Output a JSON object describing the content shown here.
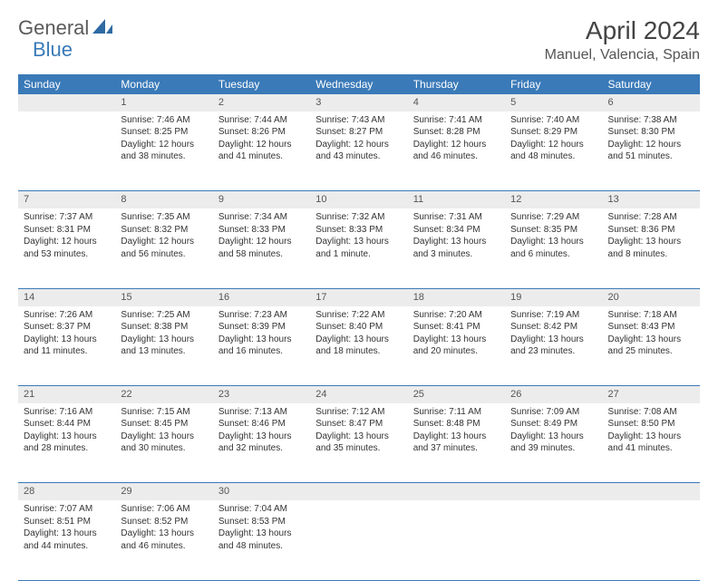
{
  "brand": {
    "part1": "General",
    "part2": "Blue"
  },
  "title": "April 2024",
  "location": "Manuel, Valencia, Spain",
  "colors": {
    "header_bg": "#3a7ab8",
    "header_fg": "#ffffff",
    "daynum_bg": "#ececec",
    "row_border": "#3a7ab8",
    "text": "#333333",
    "brand_gray": "#5a5a5a",
    "brand_blue": "#3a7ab8"
  },
  "weekdays": [
    "Sunday",
    "Monday",
    "Tuesday",
    "Wednesday",
    "Thursday",
    "Friday",
    "Saturday"
  ],
  "weeks": [
    [
      {
        "num": "",
        "lines": []
      },
      {
        "num": "1",
        "lines": [
          "Sunrise: 7:46 AM",
          "Sunset: 8:25 PM",
          "Daylight: 12 hours",
          "and 38 minutes."
        ]
      },
      {
        "num": "2",
        "lines": [
          "Sunrise: 7:44 AM",
          "Sunset: 8:26 PM",
          "Daylight: 12 hours",
          "and 41 minutes."
        ]
      },
      {
        "num": "3",
        "lines": [
          "Sunrise: 7:43 AM",
          "Sunset: 8:27 PM",
          "Daylight: 12 hours",
          "and 43 minutes."
        ]
      },
      {
        "num": "4",
        "lines": [
          "Sunrise: 7:41 AM",
          "Sunset: 8:28 PM",
          "Daylight: 12 hours",
          "and 46 minutes."
        ]
      },
      {
        "num": "5",
        "lines": [
          "Sunrise: 7:40 AM",
          "Sunset: 8:29 PM",
          "Daylight: 12 hours",
          "and 48 minutes."
        ]
      },
      {
        "num": "6",
        "lines": [
          "Sunrise: 7:38 AM",
          "Sunset: 8:30 PM",
          "Daylight: 12 hours",
          "and 51 minutes."
        ]
      }
    ],
    [
      {
        "num": "7",
        "lines": [
          "Sunrise: 7:37 AM",
          "Sunset: 8:31 PM",
          "Daylight: 12 hours",
          "and 53 minutes."
        ]
      },
      {
        "num": "8",
        "lines": [
          "Sunrise: 7:35 AM",
          "Sunset: 8:32 PM",
          "Daylight: 12 hours",
          "and 56 minutes."
        ]
      },
      {
        "num": "9",
        "lines": [
          "Sunrise: 7:34 AM",
          "Sunset: 8:33 PM",
          "Daylight: 12 hours",
          "and 58 minutes."
        ]
      },
      {
        "num": "10",
        "lines": [
          "Sunrise: 7:32 AM",
          "Sunset: 8:33 PM",
          "Daylight: 13 hours",
          "and 1 minute."
        ]
      },
      {
        "num": "11",
        "lines": [
          "Sunrise: 7:31 AM",
          "Sunset: 8:34 PM",
          "Daylight: 13 hours",
          "and 3 minutes."
        ]
      },
      {
        "num": "12",
        "lines": [
          "Sunrise: 7:29 AM",
          "Sunset: 8:35 PM",
          "Daylight: 13 hours",
          "and 6 minutes."
        ]
      },
      {
        "num": "13",
        "lines": [
          "Sunrise: 7:28 AM",
          "Sunset: 8:36 PM",
          "Daylight: 13 hours",
          "and 8 minutes."
        ]
      }
    ],
    [
      {
        "num": "14",
        "lines": [
          "Sunrise: 7:26 AM",
          "Sunset: 8:37 PM",
          "Daylight: 13 hours",
          "and 11 minutes."
        ]
      },
      {
        "num": "15",
        "lines": [
          "Sunrise: 7:25 AM",
          "Sunset: 8:38 PM",
          "Daylight: 13 hours",
          "and 13 minutes."
        ]
      },
      {
        "num": "16",
        "lines": [
          "Sunrise: 7:23 AM",
          "Sunset: 8:39 PM",
          "Daylight: 13 hours",
          "and 16 minutes."
        ]
      },
      {
        "num": "17",
        "lines": [
          "Sunrise: 7:22 AM",
          "Sunset: 8:40 PM",
          "Daylight: 13 hours",
          "and 18 minutes."
        ]
      },
      {
        "num": "18",
        "lines": [
          "Sunrise: 7:20 AM",
          "Sunset: 8:41 PM",
          "Daylight: 13 hours",
          "and 20 minutes."
        ]
      },
      {
        "num": "19",
        "lines": [
          "Sunrise: 7:19 AM",
          "Sunset: 8:42 PM",
          "Daylight: 13 hours",
          "and 23 minutes."
        ]
      },
      {
        "num": "20",
        "lines": [
          "Sunrise: 7:18 AM",
          "Sunset: 8:43 PM",
          "Daylight: 13 hours",
          "and 25 minutes."
        ]
      }
    ],
    [
      {
        "num": "21",
        "lines": [
          "Sunrise: 7:16 AM",
          "Sunset: 8:44 PM",
          "Daylight: 13 hours",
          "and 28 minutes."
        ]
      },
      {
        "num": "22",
        "lines": [
          "Sunrise: 7:15 AM",
          "Sunset: 8:45 PM",
          "Daylight: 13 hours",
          "and 30 minutes."
        ]
      },
      {
        "num": "23",
        "lines": [
          "Sunrise: 7:13 AM",
          "Sunset: 8:46 PM",
          "Daylight: 13 hours",
          "and 32 minutes."
        ]
      },
      {
        "num": "24",
        "lines": [
          "Sunrise: 7:12 AM",
          "Sunset: 8:47 PM",
          "Daylight: 13 hours",
          "and 35 minutes."
        ]
      },
      {
        "num": "25",
        "lines": [
          "Sunrise: 7:11 AM",
          "Sunset: 8:48 PM",
          "Daylight: 13 hours",
          "and 37 minutes."
        ]
      },
      {
        "num": "26",
        "lines": [
          "Sunrise: 7:09 AM",
          "Sunset: 8:49 PM",
          "Daylight: 13 hours",
          "and 39 minutes."
        ]
      },
      {
        "num": "27",
        "lines": [
          "Sunrise: 7:08 AM",
          "Sunset: 8:50 PM",
          "Daylight: 13 hours",
          "and 41 minutes."
        ]
      }
    ],
    [
      {
        "num": "28",
        "lines": [
          "Sunrise: 7:07 AM",
          "Sunset: 8:51 PM",
          "Daylight: 13 hours",
          "and 44 minutes."
        ]
      },
      {
        "num": "29",
        "lines": [
          "Sunrise: 7:06 AM",
          "Sunset: 8:52 PM",
          "Daylight: 13 hours",
          "and 46 minutes."
        ]
      },
      {
        "num": "30",
        "lines": [
          "Sunrise: 7:04 AM",
          "Sunset: 8:53 PM",
          "Daylight: 13 hours",
          "and 48 minutes."
        ]
      },
      {
        "num": "",
        "lines": []
      },
      {
        "num": "",
        "lines": []
      },
      {
        "num": "",
        "lines": []
      },
      {
        "num": "",
        "lines": []
      }
    ]
  ]
}
